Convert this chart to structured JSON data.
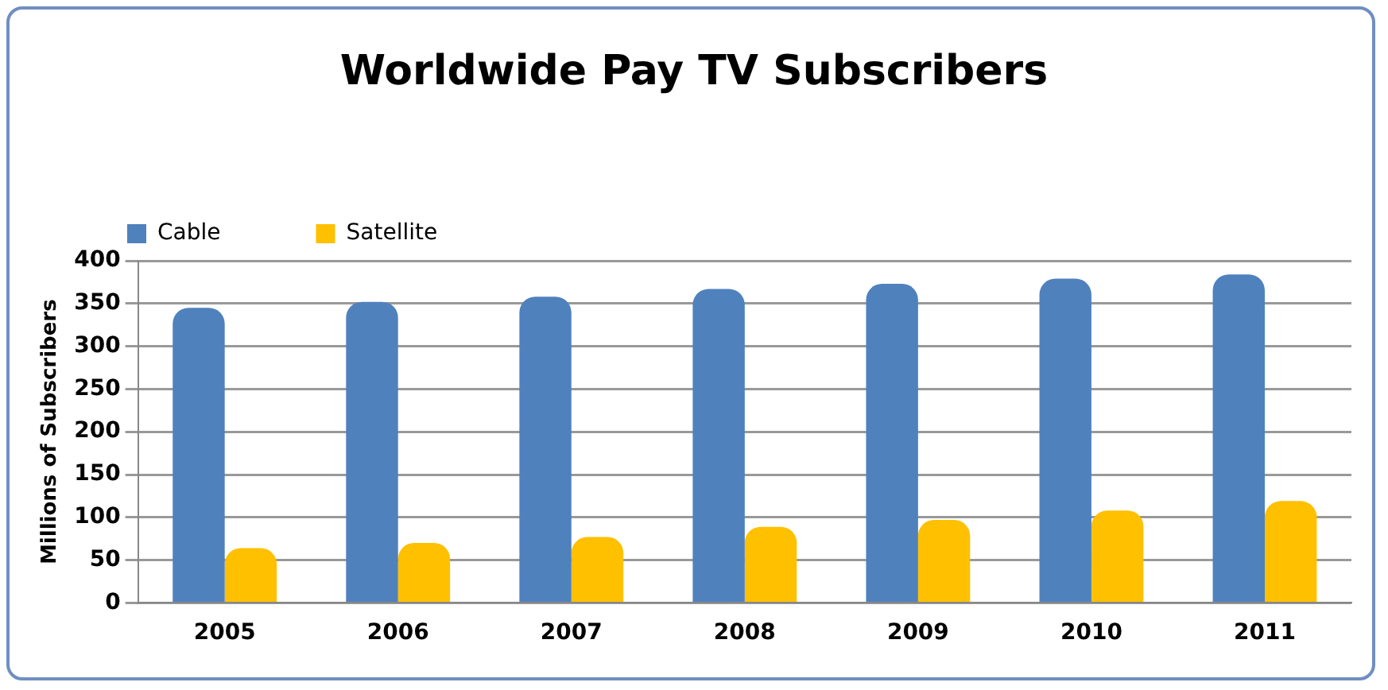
{
  "chart_data": {
    "type": "bar",
    "title": "Worldwide Pay TV Subscribers",
    "ylabel": "Millions of Subscribers",
    "categories": [
      "2005",
      "2006",
      "2007",
      "2008",
      "2009",
      "2010",
      "2011"
    ],
    "series": [
      {
        "name": "Cable",
        "color": "#4f81bd",
        "values": [
          345,
          352,
          358,
          367,
          373,
          379,
          384
        ]
      },
      {
        "name": "Satellite",
        "color": "#ffc000",
        "values": [
          64,
          70,
          77,
          89,
          97,
          108,
          119
        ]
      }
    ],
    "ylim": [
      0,
      400
    ],
    "yticks": [
      0,
      50,
      100,
      150,
      200,
      250,
      300,
      350,
      400
    ],
    "grid": "y",
    "legend": "top left"
  }
}
